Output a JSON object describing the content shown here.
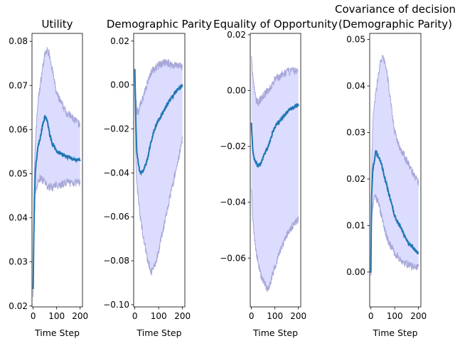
{
  "chart_data": [
    {
      "type": "line",
      "title": "Utility",
      "xlabel": "Time Step",
      "ylabel": "",
      "xlim": [
        -5,
        210
      ],
      "ylim": [
        0.0198,
        0.0818
      ],
      "xticks": [
        0,
        100,
        200
      ],
      "xtick_labels": [
        "0",
        "100",
        "200"
      ],
      "yticks": [
        0.02,
        0.03,
        0.04,
        0.05,
        0.06,
        0.07,
        0.08
      ],
      "ytick_labels": [
        "0.02",
        "0.03",
        "0.04",
        "0.05",
        "0.06",
        "0.07",
        "0.08"
      ],
      "series": [
        {
          "role": "mean",
          "x": [
            0,
            5,
            10,
            20,
            30,
            40,
            50,
            60,
            70,
            80,
            90,
            100,
            120,
            140,
            160,
            180,
            200
          ],
          "y": [
            0.024,
            0.044,
            0.051,
            0.056,
            0.058,
            0.061,
            0.063,
            0.062,
            0.059,
            0.057,
            0.056,
            0.055,
            0.0545,
            0.054,
            0.0535,
            0.0532,
            0.0532
          ]
        },
        {
          "role": "band-upper",
          "x": [
            0,
            5,
            10,
            20,
            30,
            40,
            50,
            60,
            70,
            80,
            90,
            100,
            120,
            140,
            160,
            180,
            200
          ],
          "y": [
            0.023,
            0.05,
            0.058,
            0.066,
            0.07,
            0.074,
            0.077,
            0.078,
            0.077,
            0.074,
            0.071,
            0.068,
            0.066,
            0.064,
            0.063,
            0.062,
            0.061
          ]
        },
        {
          "role": "band-lower",
          "x": [
            0,
            5,
            10,
            20,
            30,
            40,
            50,
            60,
            70,
            80,
            90,
            100,
            120,
            140,
            160,
            180,
            200
          ],
          "y": [
            0.023,
            0.04,
            0.046,
            0.048,
            0.049,
            0.0485,
            0.048,
            0.047,
            0.047,
            0.047,
            0.047,
            0.0475,
            0.0475,
            0.048,
            0.048,
            0.048,
            0.048
          ]
        }
      ]
    },
    {
      "type": "line",
      "title": "Demographic Parity",
      "xlabel": "Time Step",
      "ylabel": "",
      "xlim": [
        -5,
        210
      ],
      "ylim": [
        -0.101,
        0.0235
      ],
      "xticks": [
        0,
        100,
        200
      ],
      "xtick_labels": [
        "0",
        "100",
        "200"
      ],
      "yticks": [
        0.02,
        0.0,
        -0.02,
        -0.04,
        -0.06,
        -0.08,
        -0.1
      ],
      "ytick_labels": [
        "0.02",
        "0.00",
        "−0.02",
        "−0.04",
        "−0.06",
        "−0.08",
        "−0.10"
      ],
      "series": [
        {
          "role": "mean",
          "x": [
            0,
            3,
            8,
            15,
            20,
            30,
            40,
            50,
            60,
            70,
            80,
            90,
            100,
            120,
            140,
            160,
            180,
            200
          ],
          "y": [
            0.007,
            -0.012,
            -0.03,
            -0.036,
            -0.039,
            -0.04,
            -0.038,
            -0.035,
            -0.03,
            -0.025,
            -0.021,
            -0.018,
            -0.016,
            -0.012,
            -0.008,
            -0.005,
            -0.002,
            0.0
          ]
        },
        {
          "role": "band-upper",
          "x": [
            0,
            3,
            8,
            15,
            20,
            30,
            40,
            50,
            60,
            70,
            80,
            90,
            100,
            120,
            140,
            160,
            180,
            200
          ],
          "y": [
            0.008,
            -0.002,
            -0.012,
            -0.012,
            -0.01,
            -0.007,
            -0.004,
            0.0,
            0.004,
            0.006,
            0.007,
            0.008,
            0.009,
            0.01,
            0.01,
            0.009,
            0.009,
            0.008
          ]
        },
        {
          "role": "band-lower",
          "x": [
            0,
            3,
            8,
            15,
            20,
            30,
            40,
            50,
            60,
            70,
            80,
            90,
            100,
            120,
            140,
            160,
            180,
            200
          ],
          "y": [
            0.006,
            -0.03,
            -0.045,
            -0.052,
            -0.058,
            -0.065,
            -0.072,
            -0.078,
            -0.082,
            -0.085,
            -0.083,
            -0.08,
            -0.075,
            -0.065,
            -0.055,
            -0.045,
            -0.035,
            -0.025
          ]
        }
      ]
    },
    {
      "type": "line",
      "title": "Equality of Opportunity",
      "xlabel": "Time Step",
      "ylabel": "",
      "xlim": [
        -5,
        210
      ],
      "ylim": [
        -0.0775,
        0.0205
      ],
      "xticks": [
        0,
        100,
        200
      ],
      "xtick_labels": [
        "0",
        "100",
        "200"
      ],
      "yticks": [
        0.02,
        0.0,
        -0.02,
        -0.04,
        -0.06
      ],
      "ytick_labels": [
        "0.02",
        "0.00",
        "−0.02",
        "−0.04",
        "−0.06"
      ],
      "series": [
        {
          "role": "mean",
          "x": [
            0,
            5,
            10,
            20,
            30,
            40,
            50,
            60,
            70,
            80,
            90,
            100,
            120,
            140,
            160,
            180,
            200
          ],
          "y": [
            -0.012,
            -0.02,
            -0.024,
            -0.026,
            -0.027,
            -0.026,
            -0.024,
            -0.022,
            -0.02,
            -0.018,
            -0.015,
            -0.013,
            -0.011,
            -0.009,
            -0.007,
            -0.006,
            -0.005
          ]
        },
        {
          "role": "band-upper",
          "x": [
            0,
            5,
            10,
            20,
            30,
            40,
            50,
            60,
            70,
            80,
            90,
            100,
            120,
            140,
            160,
            180,
            200
          ],
          "y": [
            0.012,
            0.006,
            0.002,
            -0.004,
            -0.004,
            -0.003,
            -0.002,
            -0.001,
            0.0,
            0.001,
            0.002,
            0.004,
            0.005,
            0.006,
            0.007,
            0.007,
            0.007
          ]
        },
        {
          "role": "band-lower",
          "x": [
            0,
            5,
            10,
            20,
            30,
            40,
            50,
            60,
            70,
            80,
            90,
            100,
            120,
            140,
            160,
            180,
            200
          ],
          "y": [
            -0.035,
            -0.045,
            -0.05,
            -0.058,
            -0.062,
            -0.066,
            -0.068,
            -0.07,
            -0.071,
            -0.069,
            -0.066,
            -0.063,
            -0.058,
            -0.054,
            -0.05,
            -0.048,
            -0.046
          ]
        }
      ]
    },
    {
      "type": "line",
      "title": "Covariance of decision\n(Demographic Parity)",
      "xlabel": "Time Step",
      "ylabel": "",
      "xlim": [
        -5,
        210
      ],
      "ylim": [
        -0.0075,
        0.0513
      ],
      "xticks": [
        0,
        100,
        200
      ],
      "xtick_labels": [
        "0",
        "100",
        "200"
      ],
      "yticks": [
        0.0,
        0.01,
        0.02,
        0.03,
        0.04,
        0.05
      ],
      "ytick_labels": [
        "0.00",
        "0.01",
        "0.02",
        "0.03",
        "0.04",
        "0.05"
      ],
      "series": [
        {
          "role": "mean",
          "x": [
            0,
            3,
            8,
            15,
            20,
            30,
            40,
            50,
            60,
            70,
            80,
            90,
            100,
            120,
            140,
            160,
            180,
            200
          ],
          "y": [
            0.0,
            0.016,
            0.022,
            0.024,
            0.026,
            0.025,
            0.024,
            0.022,
            0.02,
            0.018,
            0.016,
            0.014,
            0.012,
            0.01,
            0.008,
            0.006,
            0.005,
            0.004
          ]
        },
        {
          "role": "band-upper",
          "x": [
            0,
            3,
            8,
            15,
            20,
            30,
            40,
            50,
            60,
            70,
            80,
            90,
            100,
            120,
            140,
            160,
            180,
            200
          ],
          "y": [
            0.0,
            0.022,
            0.032,
            0.036,
            0.038,
            0.042,
            0.045,
            0.046,
            0.045,
            0.042,
            0.038,
            0.034,
            0.03,
            0.027,
            0.025,
            0.023,
            0.021,
            0.019
          ]
        },
        {
          "role": "band-lower",
          "x": [
            0,
            3,
            8,
            15,
            20,
            30,
            40,
            50,
            60,
            70,
            80,
            90,
            100,
            120,
            140,
            160,
            180,
            200
          ],
          "y": [
            0.0,
            0.01,
            0.014,
            0.016,
            0.016,
            0.015,
            0.013,
            0.011,
            0.009,
            0.007,
            0.006,
            0.005,
            0.004,
            0.003,
            0.002,
            0.0015,
            0.001,
            0.001
          ]
        }
      ]
    }
  ],
  "colors": {
    "mean_line": "#1f77b4",
    "band_fill": "#dcdcff",
    "band_edge": "#a7a7d9",
    "axis": "#000000"
  }
}
